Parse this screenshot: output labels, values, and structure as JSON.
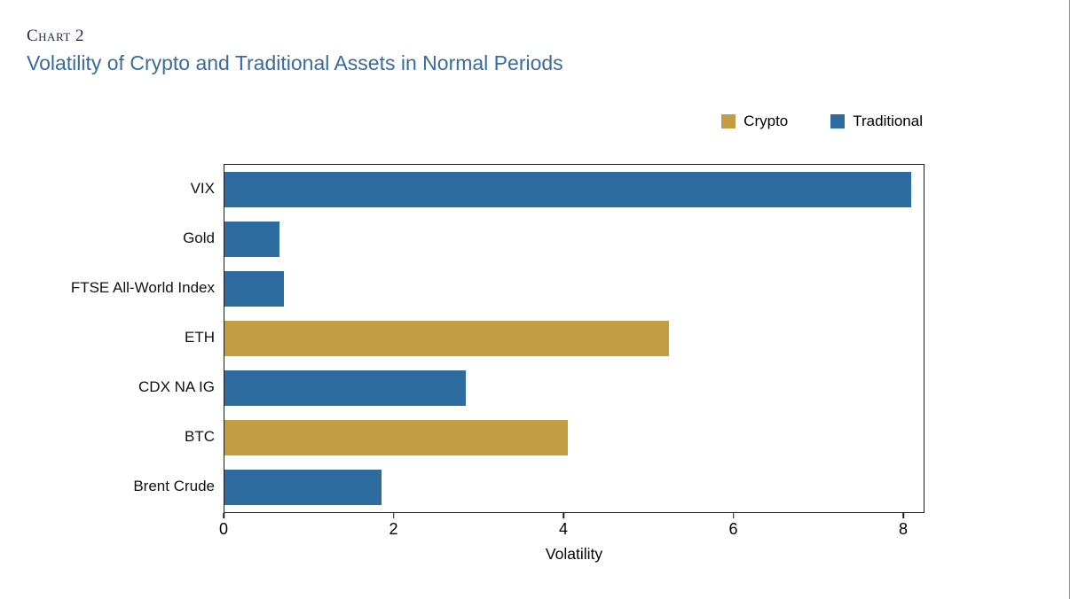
{
  "page": {
    "kicker": "Chart 2",
    "title": "Volatility of Crypto and Traditional Assets in Normal Periods"
  },
  "chart_data": {
    "type": "bar",
    "orientation": "horizontal",
    "title": "Volatility of Crypto and Traditional Assets in Normal Periods",
    "categories": [
      "VIX",
      "Gold",
      "FTSE All-World Index",
      "ETH",
      "CDX NA IG",
      "BTC",
      "Brent Crude"
    ],
    "values": [
      8.1,
      0.65,
      0.7,
      5.25,
      2.85,
      4.05,
      1.85
    ],
    "groups": [
      "Traditional",
      "Traditional",
      "Traditional",
      "Crypto",
      "Traditional",
      "Crypto",
      "Traditional"
    ],
    "legend": [
      {
        "name": "Crypto",
        "color": "#C49C44"
      },
      {
        "name": "Traditional",
        "color": "#2E6B9E"
      }
    ],
    "xlabel": "Volatility",
    "xticks": [
      0,
      2,
      4,
      6,
      8
    ],
    "xlim": [
      0,
      8.25
    ],
    "grid": false,
    "legend_position": "top-right"
  }
}
